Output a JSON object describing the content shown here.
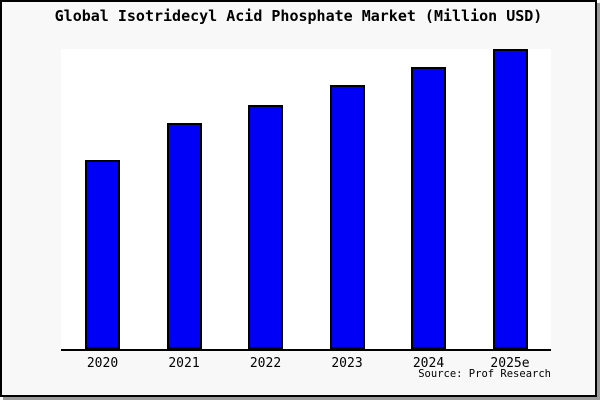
{
  "window": {
    "background": "#f8f8f8",
    "border_color": "#000000",
    "shadow_color": "#9b9b9b"
  },
  "chart_data": {
    "type": "bar",
    "title": "Global Isotridecyl Acid Phosphate Market (Million USD)",
    "categories": [
      "2020",
      "2021",
      "2022",
      "2023",
      "2024",
      "2025e"
    ],
    "values": [
      63,
      75.5,
      81.5,
      88,
      94,
      100
    ],
    "ylim": [
      0,
      100
    ],
    "xlabel": "",
    "ylabel": "",
    "grid": false,
    "legend": false,
    "bar_color": "#0000f6",
    "bar_border_color": "#000000",
    "plot_background": "#ffffff",
    "source_note": "Source: Prof Research"
  }
}
